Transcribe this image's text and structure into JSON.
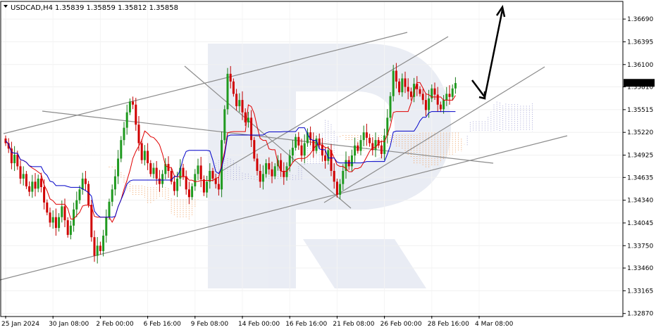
{
  "header": {
    "symbol": "USDCAD,H4",
    "ohlc": "1.35839 1.35859 1.35812 1.35858"
  },
  "chart_data": {
    "type": "candlestick",
    "title": "USDCAD,H4 1.35839 1.35859 1.35812 1.35858",
    "ylim": [
      1.3284,
      1.3691
    ],
    "y_ticks": [
      "1.36690",
      "1.36395",
      "1.36100",
      "1.35810",
      "1.35515",
      "1.35220",
      "1.34925",
      "1.34635",
      "1.34340",
      "1.34045",
      "1.33750",
      "1.33460",
      "1.33165",
      "1.32870"
    ],
    "y_tick_values": [
      1.3669,
      1.36395,
      1.361,
      1.3581,
      1.35515,
      1.3522,
      1.34925,
      1.34635,
      1.3434,
      1.34045,
      1.3375,
      1.3346,
      1.33165,
      1.3287
    ],
    "current_price": "1.35858",
    "current_price_value": 1.35858,
    "x_ticks": [
      "25 Jan 2024",
      "30 Jan 08:00",
      "2 Feb 00:00",
      "6 Feb 16:00",
      "9 Feb 08:00",
      "14 Feb 00:00",
      "16 Feb 16:00",
      "21 Feb 08:00",
      "26 Feb 00:00",
      "28 Feb 16:00",
      "4 Mar 08:00"
    ],
    "x_tick_bar_index": [
      0,
      16,
      32,
      48,
      64,
      80,
      96,
      112,
      128,
      144,
      160
    ],
    "closes": [
      1.3508,
      1.3501,
      1.3482,
      1.3493,
      1.3478,
      1.3462,
      1.3468,
      1.3452,
      1.3445,
      1.3458,
      1.3449,
      1.3462,
      1.3451,
      1.3431,
      1.3418,
      1.3405,
      1.3412,
      1.3398,
      1.3412,
      1.3426,
      1.3408,
      1.3389,
      1.3401,
      1.3422,
      1.3434,
      1.3448,
      1.3462,
      1.3455,
      1.3428,
      1.3386,
      1.3362,
      1.3375,
      1.3368,
      1.3388,
      1.3412,
      1.3432,
      1.3448,
      1.3465,
      1.3488,
      1.3512,
      1.3528,
      1.3548,
      1.3562,
      1.3558,
      1.3532,
      1.3508,
      1.3486,
      1.3498,
      1.3482,
      1.3468,
      1.3476,
      1.3462,
      1.3455,
      1.3468,
      1.3481,
      1.3472,
      1.3458,
      1.3446,
      1.3462,
      1.3476,
      1.3465,
      1.3448,
      1.3438,
      1.3452,
      1.3468,
      1.3479,
      1.3461,
      1.3444,
      1.3458,
      1.3472,
      1.3462,
      1.3455,
      1.3448,
      1.3512,
      1.3552,
      1.3598,
      1.3588,
      1.3572,
      1.3556,
      1.3564,
      1.3548,
      1.3535,
      1.3541,
      1.3512,
      1.3488,
      1.3472,
      1.3458,
      1.3468,
      1.3482,
      1.3474,
      1.3465,
      1.3478,
      1.3486,
      1.3472,
      1.3464,
      1.3478,
      1.3492,
      1.3502,
      1.3516,
      1.3505,
      1.3492,
      1.3508,
      1.3522,
      1.3512,
      1.3498,
      1.3514,
      1.3506,
      1.3492,
      1.3485,
      1.3499,
      1.3472,
      1.3458,
      1.3441,
      1.3455,
      1.3472,
      1.3486,
      1.3478,
      1.3492,
      1.3505,
      1.3498,
      1.3512,
      1.3522,
      1.3515,
      1.3508,
      1.3499,
      1.3512,
      1.3505,
      1.3494,
      1.3518,
      1.3541,
      1.3569,
      1.3602,
      1.3588,
      1.3574,
      1.3592,
      1.3581,
      1.3575,
      1.3568,
      1.3585,
      1.3578,
      1.3572,
      1.3564,
      1.3551,
      1.3566,
      1.3579,
      1.3571,
      1.3558,
      1.3552,
      1.3564,
      1.3572,
      1.3568,
      1.3579,
      1.3586
    ]
  },
  "watermark": "robo-forex-logo"
}
